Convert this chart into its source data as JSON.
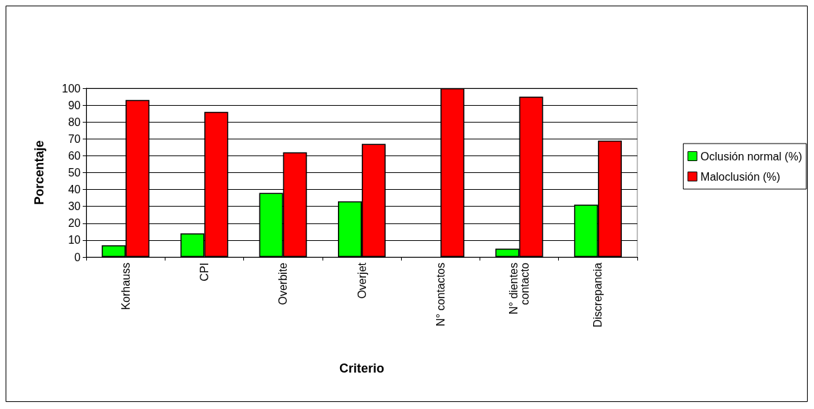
{
  "chart_data": {
    "type": "bar",
    "xlabel": "Criterio",
    "ylabel": "Porcentaje",
    "categories": [
      "Korhauss",
      "CPI",
      "Overbite",
      "Overjet",
      "N° contactos",
      "N° dientes\ncontacto",
      "Discrepancia"
    ],
    "series": [
      {
        "name": "Oclusión normal (%)",
        "color": "#00ff00",
        "values": [
          7,
          14,
          38,
          33,
          0,
          5,
          31
        ]
      },
      {
        "name": "Maloclusión (%)",
        "color": "#ff0000",
        "values": [
          93,
          86,
          62,
          67,
          100,
          95,
          69
        ]
      }
    ],
    "ylim": [
      0,
      100
    ],
    "yticks": [
      0,
      10,
      20,
      30,
      40,
      50,
      60,
      70,
      80,
      90,
      100
    ],
    "grid": "y",
    "legend": "right"
  }
}
